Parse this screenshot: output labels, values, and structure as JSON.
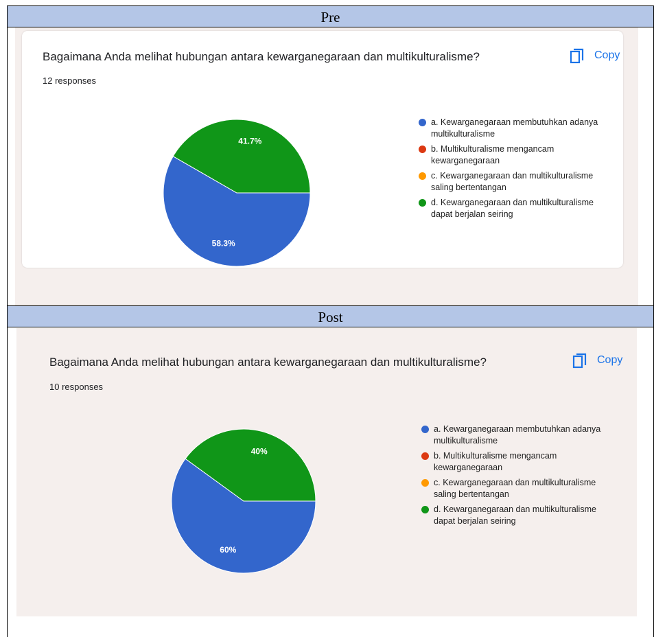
{
  "headers": [
    "Pre",
    "Post"
  ],
  "chart_data": [
    {
      "type": "pie",
      "title": "Bagaimana Anda melihat hubungan antara kewarganegaraan dan multikulturalisme?",
      "subtitle": "12 responses",
      "button": "Copy",
      "categories": [
        "a. Kewarganegaraan membutuhkan adanya multikulturalisme",
        "b. Multikulturalisme mengancam kewarganegaraan",
        "c. Kewarganegaraan dan multikulturalisme saling bertentangan",
        "d. Kewarganegaraan dan multikulturalisme dapat berjalan seiring"
      ],
      "values": [
        58.3,
        0,
        0,
        41.7
      ],
      "value_labels": [
        "58.3%",
        null,
        null,
        "41.7%"
      ],
      "colors": [
        "#3366cc",
        "#dc3912",
        "#ff9900",
        "#109618"
      ]
    },
    {
      "type": "pie",
      "title": "Bagaimana Anda melihat hubungan antara kewarganegaraan dan multikulturalisme?",
      "subtitle": "10 responses",
      "button": "Copy",
      "categories": [
        "a. Kewarganegaraan membutuhkan adanya multikulturalisme",
        "b. Multikulturalisme mengancam kewarganegaraan",
        "c. Kewarganegaraan dan multikulturalisme saling bertentangan",
        "d. Kewarganegaraan dan multikulturalisme dapat berjalan seiring"
      ],
      "values": [
        60,
        0,
        0,
        40
      ],
      "value_labels": [
        "60%",
        null,
        null,
        "40%"
      ],
      "colors": [
        "#3366cc",
        "#dc3912",
        "#ff9900",
        "#109618"
      ]
    }
  ]
}
